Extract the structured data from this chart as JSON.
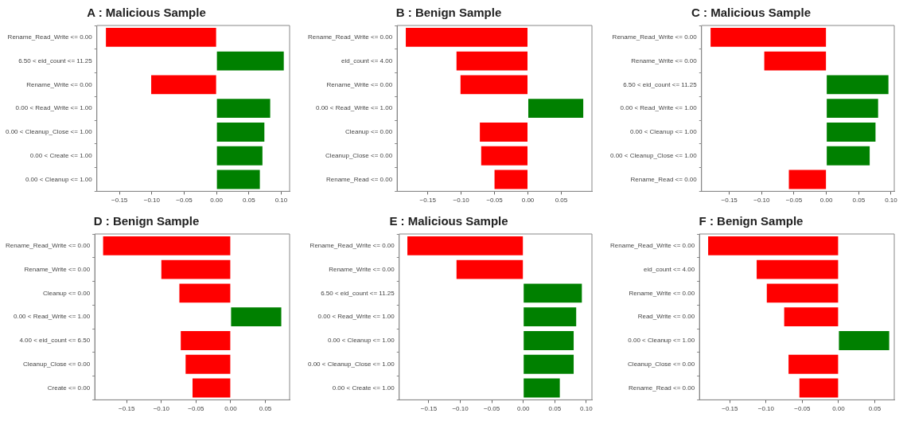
{
  "chart_data": [
    {
      "type": "bar",
      "orientation": "horizontal",
      "title": "A : Malicious Sample",
      "grid": false,
      "legend": false,
      "categories": [
        "Rename_Read_Write <= 0.00",
        "6.50 < eid_count <= 11.25",
        "Rename_Write <= 0.00",
        "0.00 < Read_Write <= 1.00",
        "0.00 < Cleanup_Close <= 1.00",
        "0.00 < Create <= 1.00",
        "0.00 < Cleanup <= 1.00"
      ],
      "values": [
        -0.171,
        0.104,
        -0.101,
        0.083,
        0.074,
        0.071,
        0.067
      ],
      "colors": [
        "#ff0000",
        "#008000",
        "#ff0000",
        "#008000",
        "#008000",
        "#008000",
        "#008000"
      ],
      "xlim": [
        -0.185,
        0.113
      ],
      "xticks": [
        {
          "value": -0.15,
          "label": "−0.15"
        },
        {
          "value": -0.1,
          "label": "−0.10"
        },
        {
          "value": -0.05,
          "label": "−0.05"
        },
        {
          "value": 0,
          "label": "0.00"
        },
        {
          "value": 0.05,
          "label": "0.05"
        },
        {
          "value": 0.1,
          "label": "0.10"
        }
      ]
    },
    {
      "type": "bar",
      "orientation": "horizontal",
      "title": "B : Benign Sample",
      "grid": false,
      "legend": false,
      "categories": [
        "Rename_Read_Write <= 0.00",
        "eid_count <= 4.00",
        "Rename_Write <= 0.00",
        "0.00 < Read_Write <= 1.00",
        "Cleanup <= 0.00",
        "Cleanup_Close <= 0.00",
        "Rename_Read <= 0.00"
      ],
      "values": [
        -0.183,
        -0.107,
        -0.101,
        0.083,
        -0.072,
        -0.07,
        -0.05
      ],
      "colors": [
        "#ff0000",
        "#ff0000",
        "#ff0000",
        "#008000",
        "#ff0000",
        "#ff0000",
        "#ff0000"
      ],
      "xlim": [
        -0.196,
        0.096
      ],
      "xticks": [
        {
          "value": -0.15,
          "label": "−0.15"
        },
        {
          "value": -0.1,
          "label": "−0.10"
        },
        {
          "value": -0.05,
          "label": "−0.05"
        },
        {
          "value": 0,
          "label": "0.00"
        },
        {
          "value": 0.05,
          "label": "0.05"
        }
      ]
    },
    {
      "type": "bar",
      "orientation": "horizontal",
      "title": "C : Malicious Sample",
      "grid": false,
      "legend": false,
      "categories": [
        "Rename_Read_Write <= 0.00",
        "Rename_Write <= 0.00",
        "6.50 < eid_count <= 11.25",
        "0.00 < Read_Write <= 1.00",
        "0.00 < Cleanup <= 1.00",
        "0.00 < Cleanup_Close <= 1.00",
        "Rename_Read <= 0.00"
      ],
      "values": [
        -0.179,
        -0.096,
        0.096,
        0.08,
        0.076,
        0.067,
        -0.058
      ],
      "colors": [
        "#ff0000",
        "#ff0000",
        "#008000",
        "#008000",
        "#008000",
        "#008000",
        "#ff0000"
      ],
      "xlim": [
        -0.193,
        0.105
      ],
      "xticks": [
        {
          "value": -0.15,
          "label": "−0.15"
        },
        {
          "value": -0.1,
          "label": "−0.10"
        },
        {
          "value": -0.05,
          "label": "−0.05"
        },
        {
          "value": 0,
          "label": "0.00"
        },
        {
          "value": 0.05,
          "label": "0.05"
        },
        {
          "value": 0.1,
          "label": "0.10"
        }
      ]
    },
    {
      "type": "bar",
      "orientation": "horizontal",
      "title": "D : Benign Sample",
      "grid": false,
      "legend": false,
      "categories": [
        "Rename_Read_Write <= 0.00",
        "Rename_Write <= 0.00",
        "Cleanup <= 0.00",
        "0.00 < Read_Write <= 1.00",
        "4.00 < eid_count <= 6.50",
        "Cleanup_Close <= 0.00",
        "Create <= 0.00"
      ],
      "values": [
        -0.184,
        -0.1,
        -0.074,
        0.073,
        -0.072,
        -0.065,
        -0.055
      ],
      "colors": [
        "#ff0000",
        "#ff0000",
        "#ff0000",
        "#008000",
        "#ff0000",
        "#ff0000",
        "#ff0000"
      ],
      "xlim": [
        -0.196,
        0.085
      ],
      "xticks": [
        {
          "value": -0.15,
          "label": "−0.15"
        },
        {
          "value": -0.1,
          "label": "−0.10"
        },
        {
          "value": -0.05,
          "label": "−0.05"
        },
        {
          "value": 0,
          "label": "0.00"
        },
        {
          "value": 0.05,
          "label": "0.05"
        }
      ]
    },
    {
      "type": "bar",
      "orientation": "horizontal",
      "title": "E : Malicious Sample",
      "grid": false,
      "legend": false,
      "categories": [
        "Rename_Read_Write <= 0.00",
        "Rename_Write <= 0.00",
        "6.50 < eid_count <= 11.25",
        "0.00 < Read_Write <= 1.00",
        "0.00 < Cleanup <= 1.00",
        "0.00 < Cleanup_Close <= 1.00",
        "0.00 < Create <= 1.00"
      ],
      "values": [
        -0.184,
        -0.106,
        0.093,
        0.084,
        0.08,
        0.08,
        0.058
      ],
      "colors": [
        "#ff0000",
        "#ff0000",
        "#008000",
        "#008000",
        "#008000",
        "#008000",
        "#008000"
      ],
      "xlim": [
        -0.197,
        0.109
      ],
      "xticks": [
        {
          "value": -0.15,
          "label": "−0.15"
        },
        {
          "value": -0.1,
          "label": "−0.10"
        },
        {
          "value": -0.05,
          "label": "−0.05"
        },
        {
          "value": 0,
          "label": "0.00"
        },
        {
          "value": 0.05,
          "label": "0.05"
        },
        {
          "value": 0.1,
          "label": "0.10"
        }
      ]
    },
    {
      "type": "bar",
      "orientation": "horizontal",
      "title": "F : Benign Sample",
      "grid": false,
      "legend": false,
      "categories": [
        "Rename_Read_Write <= 0.00",
        "eid_count <= 4.00",
        "Rename_Write <= 0.00",
        "Read_Write <= 0.00",
        "0.00 < Cleanup <= 1.00",
        "Cleanup_Close <= 0.00",
        "Rename_Read <= 0.00"
      ],
      "values": [
        -0.18,
        -0.113,
        -0.099,
        -0.075,
        0.07,
        -0.069,
        -0.054
      ],
      "colors": [
        "#ff0000",
        "#ff0000",
        "#ff0000",
        "#ff0000",
        "#008000",
        "#ff0000",
        "#ff0000"
      ],
      "xlim": [
        -0.192,
        0.077
      ],
      "xticks": [
        {
          "value": -0.15,
          "label": "−0.15"
        },
        {
          "value": -0.1,
          "label": "−0.10"
        },
        {
          "value": -0.05,
          "label": "−0.05"
        },
        {
          "value": 0,
          "label": "0.00"
        },
        {
          "value": 0.05,
          "label": "0.05"
        }
      ]
    }
  ]
}
